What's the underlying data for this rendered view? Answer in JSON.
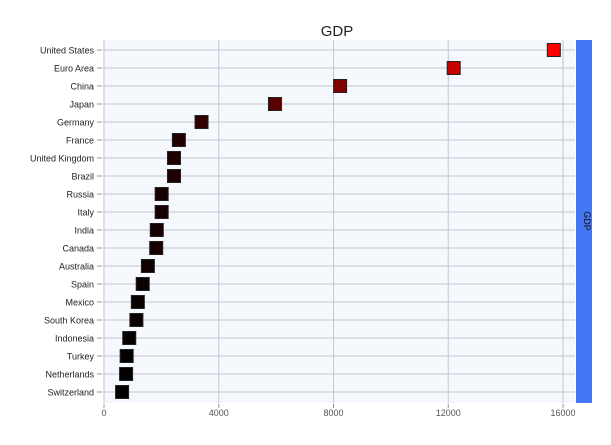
{
  "chart_data": {
    "type": "scatter",
    "title": "GDP",
    "marker": "square",
    "categories": [
      "United States",
      "Euro Area",
      "China",
      "Japan",
      "Germany",
      "France",
      "United Kingdom",
      "Brazil",
      "Russia",
      "Italy",
      "India",
      "Canada",
      "Australia",
      "Spain",
      "Mexico",
      "South Korea",
      "Indonesia",
      "Turkey",
      "Netherlands",
      "Switzerland"
    ],
    "values": [
      15680,
      12190,
      8230,
      5960,
      3400,
      2610,
      2440,
      2440,
      2010,
      2010,
      1840,
      1820,
      1530,
      1350,
      1180,
      1130,
      880,
      790,
      770,
      630
    ],
    "xlim": [
      0,
      16500
    ],
    "xticks": [
      0,
      4000,
      8000,
      12000,
      16000
    ],
    "grid": true,
    "colorbar": {
      "label": "GDP",
      "color": "#4477f5"
    },
    "colors": {
      "low": "#000000",
      "high": "#ff0000",
      "plot_bg": "#f5f8fc",
      "grid": "#c4c8d0"
    }
  }
}
